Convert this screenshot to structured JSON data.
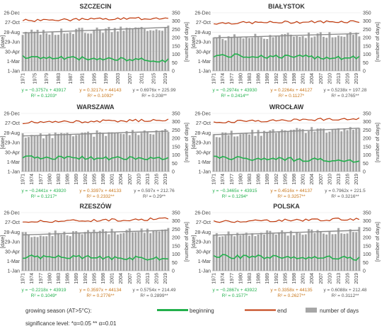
{
  "chart_data": {
    "type": "bar+line",
    "colors": {
      "beginning": "#22b04c",
      "end": "#c0390b",
      "bars": "#a6a6a6",
      "trend": "#8c8c8c",
      "eq_begin": "#22b04c",
      "eq_end": "#c8761a",
      "eq_days": "#555555"
    },
    "left_ylabel": "[date]",
    "right_ylabel": "[number of days]",
    "left_ticks": [
      "1-Jan",
      "1-Mar",
      "30-Apr",
      "29-Jun",
      "28-Aug",
      "27-Oct",
      "26-Dec"
    ],
    "left_tick_doy": [
      1,
      60,
      120,
      180,
      240,
      300,
      360
    ],
    "left_ylim": [
      1,
      360
    ],
    "right_ticks": [
      "0",
      "50",
      "100",
      "150",
      "200",
      "250",
      "300",
      "350"
    ],
    "right_ylim": [
      0,
      350
    ],
    "x_start": 1971,
    "x_end": 2020,
    "panels": [
      {
        "title": "SZCZECIN",
        "x_ticks": [
          "1971",
          "1975",
          "1979",
          "1983",
          "1987",
          "1991",
          "1995",
          "1999",
          "2003",
          "2007",
          "2011",
          "2015",
          "2019"
        ],
        "eq_begin": "y = −0.3757x + 43917",
        "r2_begin": "R² = 0.1203*",
        "eq_end": "y = 0.3217x + 44143",
        "r2_end": "R² = 0.1092*",
        "eq_days": "y = 0.6976x + 225.99",
        "r2_days": "R² = 0.208**",
        "days_base": 228,
        "days_slope": 0.698,
        "begin_base": 85,
        "begin_slope": -0.376,
        "end_base": 312,
        "end_slope": 0.322,
        "seed": 3
      },
      {
        "title": "BIAŁYSTOK",
        "x_ticks": [
          "1971",
          "1974",
          "1977",
          "1980",
          "1983",
          "1986",
          "1989",
          "1992",
          "1995",
          "1998",
          "2001",
          "2004",
          "2007",
          "2010",
          "2013",
          "2016",
          "2019"
        ],
        "eq_begin": "y = −0.2974x + 43930",
        "r2_begin": "R² = 0.2414**",
        "eq_end": "y = 0.2264x + 44127",
        "r2_end": "R² = 0.1127*",
        "eq_days": "y = 0.5238x + 197.28",
        "r2_days": "R² = 0.2765**",
        "days_base": 199,
        "days_slope": 0.524,
        "begin_base": 96,
        "begin_slope": -0.297,
        "end_base": 296,
        "end_slope": 0.226,
        "seed": 7
      },
      {
        "title": "WARSZAWA",
        "x_ticks": [
          "1971",
          "1974",
          "1977",
          "1980",
          "1983",
          "1986",
          "1989",
          "1992",
          "1995",
          "1998",
          "2001",
          "2004",
          "2007",
          "2010",
          "2013",
          "2016",
          "2019"
        ],
        "eq_begin": "y = −0.2441x + 43920",
        "r2_begin": "R² = 0.1217*",
        "eq_end": "y = 0.3397x + 44133",
        "r2_end": "R² = 0.2332**",
        "eq_days": "y = 0.597x + 212.76",
        "r2_days": "R² = 0.29**",
        "days_base": 214,
        "days_slope": 0.597,
        "begin_base": 90,
        "begin_slope": -0.244,
        "end_base": 303,
        "end_slope": 0.34,
        "seed": 11
      },
      {
        "title": "WROCŁAW",
        "x_ticks": [
          "1971",
          "1974",
          "1977",
          "1980",
          "1983",
          "1986",
          "1989",
          "1992",
          "1995",
          "1998",
          "2001",
          "2004",
          "2007",
          "2010",
          "2013",
          "2016",
          "2019"
        ],
        "eq_begin": "y = −0.3465x + 43915",
        "r2_begin": "R² = 0.1294*",
        "eq_end": "y = 0.4516x + 44137",
        "r2_end": "R² = 0.3257**",
        "eq_days": "y = 0.7962x + 221.5",
        "r2_days": "R² = 0.3216**",
        "days_base": 222,
        "days_slope": 0.796,
        "begin_base": 86,
        "begin_slope": -0.347,
        "end_base": 307,
        "end_slope": 0.452,
        "seed": 13
      },
      {
        "title": "RZESZÓW",
        "x_ticks": [
          "1971",
          "1974",
          "1977",
          "1980",
          "1983",
          "1986",
          "1989",
          "1992",
          "1995",
          "1998",
          "2001",
          "2004",
          "2007",
          "2010",
          "2013",
          "2016",
          "2019"
        ],
        "eq_begin": "y = −0.2218x + 43919",
        "r2_begin": "R² = 0.1049*",
        "eq_end": "y = 0.3597x + 44134",
        "r2_end": "R² = 0.2776**",
        "eq_days": "y = 0.5754x + 214.49",
        "r2_days": "R² = 0.2899**",
        "days_base": 216,
        "days_slope": 0.575,
        "begin_base": 88,
        "begin_slope": -0.222,
        "end_base": 304,
        "end_slope": 0.36,
        "seed": 17
      },
      {
        "title": "POLSKA",
        "x_ticks": [
          "1971",
          "1974",
          "1977",
          "1980",
          "1983",
          "1986",
          "1989",
          "1992",
          "1995",
          "1998",
          "2001",
          "2004",
          "2007",
          "2010",
          "2013",
          "2016",
          "2019"
        ],
        "eq_begin": "y = −0.2867x + 43922",
        "r2_begin": "R² = 0.1577*",
        "eq_end": "y = 0.3358x + 44135",
        "r2_end": "R² = 0.2627**",
        "eq_days": "y = 0.6088x + 212.48",
        "r2_days": "R² = 0.3112**",
        "days_base": 214,
        "days_slope": 0.609,
        "begin_base": 91,
        "begin_slope": -0.287,
        "end_base": 304,
        "end_slope": 0.336,
        "seed": 19
      }
    ]
  },
  "legend": {
    "title": "growing season (AT>5°C):",
    "beginning": "beginning",
    "end": "end",
    "days": "number of days",
    "significance": "significance level:  *α=0.05  ** α=0.01"
  }
}
